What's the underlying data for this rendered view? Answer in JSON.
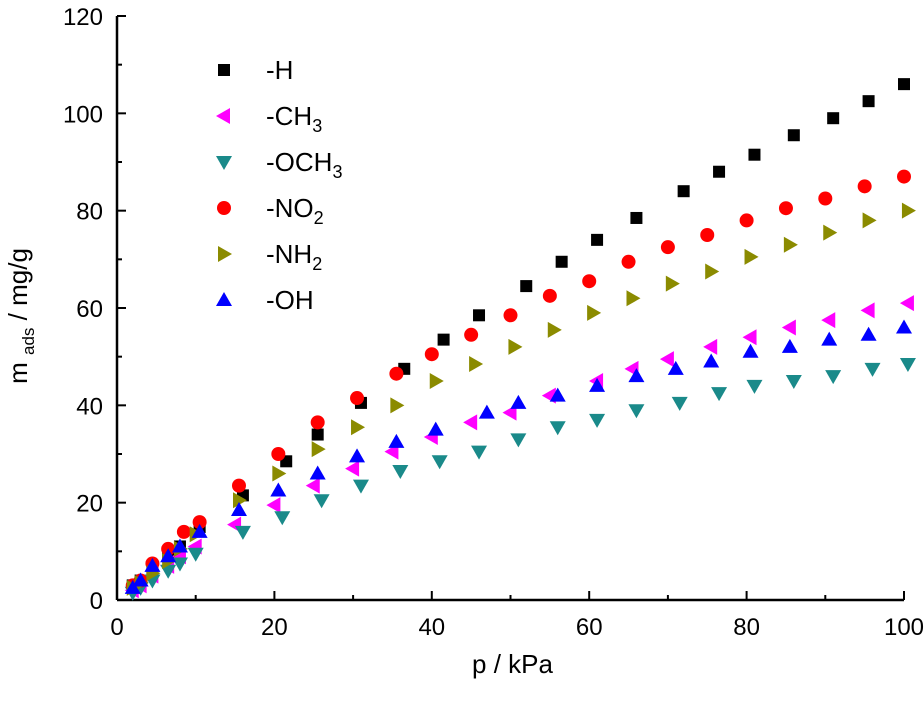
{
  "chart_data": {
    "type": "scatter",
    "xlabel": "p / kPa",
    "ylabel": {
      "main": "m",
      "sub": "ads",
      "rest": " / mg/g"
    },
    "xlim": [
      0,
      100
    ],
    "ylim": [
      0,
      120
    ],
    "x_ticks": [
      0,
      20,
      40,
      60,
      80,
      100
    ],
    "y_ticks": [
      0,
      20,
      40,
      60,
      80,
      100,
      120
    ],
    "grid": false,
    "legend_position": "top-left",
    "series": [
      {
        "name": "-H",
        "label_parts": [
          {
            "text": "-H",
            "sub": false
          }
        ],
        "marker": "square",
        "color": "#000000",
        "points": [
          [
            2,
            3
          ],
          [
            3,
            4
          ],
          [
            4.5,
            6
          ],
          [
            6.5,
            9
          ],
          [
            8,
            11
          ],
          [
            10.5,
            15
          ],
          [
            16,
            21.5
          ],
          [
            21.5,
            28.5
          ],
          [
            25.5,
            34
          ],
          [
            31,
            40.5
          ],
          [
            36.5,
            47.5
          ],
          [
            41.5,
            53.5
          ],
          [
            46,
            58.5
          ],
          [
            52,
            64.5
          ],
          [
            56.5,
            69.5
          ],
          [
            61,
            74
          ],
          [
            66,
            78.5
          ],
          [
            72,
            84
          ],
          [
            76.5,
            88
          ],
          [
            81,
            91.5
          ],
          [
            86,
            95.5
          ],
          [
            91,
            99
          ],
          [
            95.5,
            102.5
          ],
          [
            100,
            106
          ]
        ]
      },
      {
        "name": "-CH3",
        "label_parts": [
          {
            "text": "-CH",
            "sub": false
          },
          {
            "text": "3",
            "sub": true
          }
        ],
        "marker": "triangle-left",
        "color": "#ff00ff",
        "points": [
          [
            2,
            2
          ],
          [
            3,
            3
          ],
          [
            4.5,
            5
          ],
          [
            6.5,
            7
          ],
          [
            8,
            9
          ],
          [
            10,
            11
          ],
          [
            15,
            15.5
          ],
          [
            20,
            19.5
          ],
          [
            25,
            23.5
          ],
          [
            30,
            27
          ],
          [
            35,
            30.5
          ],
          [
            40,
            33.5
          ],
          [
            45,
            36.5
          ],
          [
            50,
            38.5
          ],
          [
            55,
            42
          ],
          [
            61,
            45
          ],
          [
            65.5,
            47.5
          ],
          [
            70,
            49.5
          ],
          [
            75.5,
            52
          ],
          [
            80.5,
            54
          ],
          [
            85.5,
            56
          ],
          [
            90.5,
            57.5
          ],
          [
            95.5,
            59.5
          ],
          [
            100.5,
            61
          ]
        ]
      },
      {
        "name": "-OCH3",
        "label_parts": [
          {
            "text": "-OCH",
            "sub": false
          },
          {
            "text": "3",
            "sub": true
          }
        ],
        "marker": "triangle-down",
        "color": "#1a8a8a",
        "points": [
          [
            2,
            1.5
          ],
          [
            3,
            2.5
          ],
          [
            4.5,
            4
          ],
          [
            6.5,
            6
          ],
          [
            8,
            7.5
          ],
          [
            10,
            9.5
          ],
          [
            16,
            14
          ],
          [
            21,
            17
          ],
          [
            26,
            20.5
          ],
          [
            31,
            23.5
          ],
          [
            36,
            26.5
          ],
          [
            41,
            28.5
          ],
          [
            46,
            30.5
          ],
          [
            51,
            33
          ],
          [
            56,
            35.5
          ],
          [
            61,
            37
          ],
          [
            66,
            39
          ],
          [
            71.5,
            40.5
          ],
          [
            76.5,
            42.5
          ],
          [
            81,
            44
          ],
          [
            86,
            45
          ],
          [
            91,
            46
          ],
          [
            96,
            47.5
          ],
          [
            100.5,
            48.5
          ]
        ]
      },
      {
        "name": "-NO2",
        "label_parts": [
          {
            "text": "-NO",
            "sub": false
          },
          {
            "text": "2",
            "sub": true
          }
        ],
        "marker": "circle",
        "color": "#ff0000",
        "points": [
          [
            2,
            3
          ],
          [
            3,
            4
          ],
          [
            4.5,
            7.5
          ],
          [
            6.5,
            10.5
          ],
          [
            8.5,
            14
          ],
          [
            10.5,
            16
          ],
          [
            15.5,
            23.5
          ],
          [
            20.5,
            30
          ],
          [
            25.5,
            36.5
          ],
          [
            30.5,
            41.5
          ],
          [
            35.5,
            46.5
          ],
          [
            40,
            50.5
          ],
          [
            45,
            54.5
          ],
          [
            50,
            58.5
          ],
          [
            55,
            62.5
          ],
          [
            60,
            65.5
          ],
          [
            65,
            69.5
          ],
          [
            70,
            72.5
          ],
          [
            75,
            75
          ],
          [
            80,
            78
          ],
          [
            85,
            80.5
          ],
          [
            90,
            82.5
          ],
          [
            95,
            85
          ],
          [
            100,
            87
          ]
        ]
      },
      {
        "name": "-NH2",
        "label_parts": [
          {
            "text": "-NH",
            "sub": false
          },
          {
            "text": "2",
            "sub": true
          }
        ],
        "marker": "triangle-right",
        "color": "#8b8b00",
        "points": [
          [
            2,
            2.5
          ],
          [
            3,
            3.5
          ],
          [
            4.5,
            5.5
          ],
          [
            6.5,
            8
          ],
          [
            8,
            10.5
          ],
          [
            10,
            13.5
          ],
          [
            15.5,
            20.5
          ],
          [
            20.5,
            26
          ],
          [
            25.5,
            31
          ],
          [
            30.5,
            35.5
          ],
          [
            35.5,
            40
          ],
          [
            40.5,
            45
          ],
          [
            45.5,
            48.5
          ],
          [
            50.5,
            52
          ],
          [
            55.5,
            55.5
          ],
          [
            60.5,
            59
          ],
          [
            65.5,
            62
          ],
          [
            70.5,
            65
          ],
          [
            75.5,
            67.5
          ],
          [
            80.5,
            70.5
          ],
          [
            85.5,
            73
          ],
          [
            90.5,
            75.5
          ],
          [
            95.5,
            78
          ],
          [
            100.5,
            80
          ]
        ]
      },
      {
        "name": "-OH",
        "label_parts": [
          {
            "text": "-OH",
            "sub": false
          }
        ],
        "marker": "triangle-up",
        "color": "#0000ff",
        "points": [
          [
            2,
            2.5
          ],
          [
            3,
            4
          ],
          [
            4.5,
            7
          ],
          [
            6.5,
            9
          ],
          [
            8,
            11
          ],
          [
            10.5,
            14
          ],
          [
            15.5,
            18.5
          ],
          [
            20.5,
            22.5
          ],
          [
            25.5,
            26
          ],
          [
            30.5,
            29.5
          ],
          [
            35.5,
            32.5
          ],
          [
            40.5,
            35
          ],
          [
            47,
            38.5
          ],
          [
            51,
            40.5
          ],
          [
            56,
            42
          ],
          [
            61,
            44
          ],
          [
            66,
            46
          ],
          [
            71,
            47.5
          ],
          [
            75.5,
            49
          ],
          [
            80.5,
            51
          ],
          [
            85.5,
            52
          ],
          [
            90.5,
            53.5
          ],
          [
            95.5,
            54.5
          ],
          [
            100,
            56
          ]
        ]
      }
    ]
  }
}
